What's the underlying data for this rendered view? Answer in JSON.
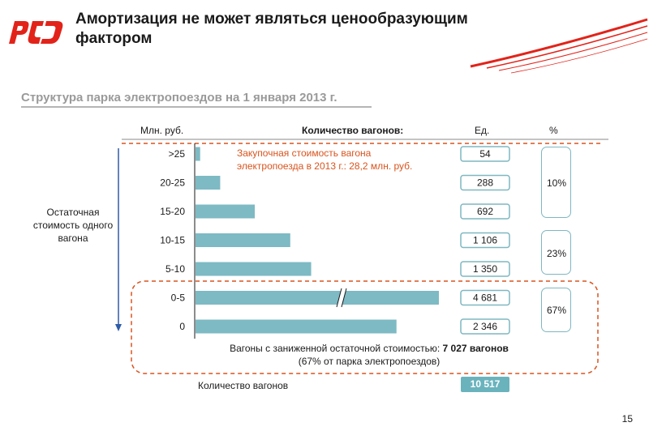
{
  "header": {
    "title": "Амортизация не может являться ценообразующим фактором"
  },
  "subtitle": "Структура парка электропоездов на 1 января 2013 г.",
  "columns": {
    "mln": "Млн. руб.",
    "count": "Количество вагонов:",
    "units": "Ед.",
    "percent": "%"
  },
  "annotation": "Закупочная стоимость вагона электропоезда в 2013 г.: 28,2 млн. руб.",
  "ylabel": "Остаточная стоимость одного вагона",
  "percent_groups": [
    {
      "label": "10%"
    },
    {
      "label": "23%"
    },
    {
      "label": "67%"
    }
  ],
  "low_value_note": {
    "text": "Вагоны с заниженной остаточной стоимостью:",
    "value": "7 027 вагонов",
    "sub": "(67% от парка электропоездов)"
  },
  "total": {
    "label": "Количество вагонов",
    "value": "10 517"
  },
  "page_number": "15",
  "colors": {
    "bar": "#7dbac4",
    "accent_orange": "#d9541e",
    "box_border": "#7fb7c1",
    "logo_red": "#e2231a"
  },
  "chart_data": {
    "type": "bar",
    "orientation": "horizontal",
    "categories": [
      ">25",
      "20-25",
      "15-20",
      "10-15",
      "5-10",
      "0-5",
      "0"
    ],
    "values": [
      54,
      288,
      692,
      1106,
      1350,
      4681,
      2346
    ],
    "value_labels": [
      "54",
      "288",
      "692",
      "1 106",
      "1 350",
      "4 681",
      "2 346"
    ],
    "axis_break": true,
    "xlabel": "Количество вагонов:",
    "ylabel": "Млн. руб."
  }
}
